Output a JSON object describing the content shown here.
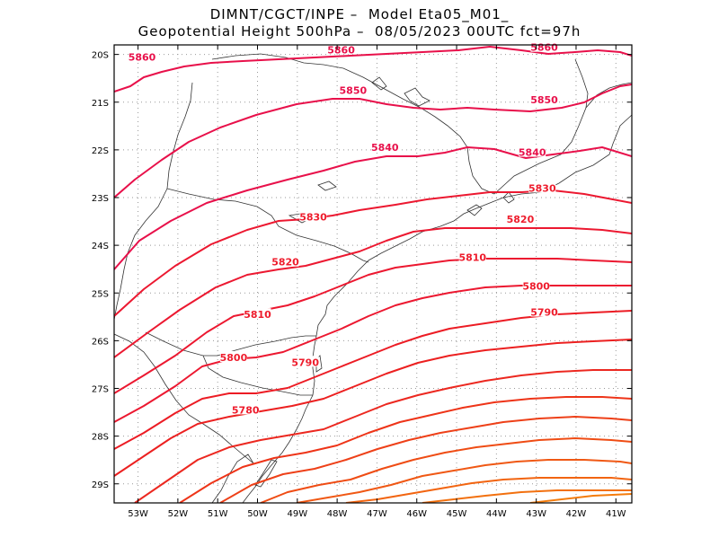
{
  "header": {
    "line1": "DIMNT/CGCT/INPE –  Model Eta05_M01_",
    "line2": "Geopotential Height 500hPa –  08/05/2023 00UTC fct=97h"
  },
  "map": {
    "lon_range": [
      -53.6,
      -40.6
    ],
    "lat_range": [
      -29.4,
      -19.8
    ],
    "lon_ticks": [
      "53W",
      "52W",
      "51W",
      "50W",
      "49W",
      "48W",
      "47W",
      "46W",
      "45W",
      "44W",
      "43W",
      "42W",
      "41W"
    ],
    "lat_ticks": [
      "20S",
      "21S",
      "22S",
      "23S",
      "24S",
      "25S",
      "26S",
      "27S",
      "28S",
      "29S"
    ],
    "contour_labels": [
      {
        "text": "5860",
        "lon": -52.9,
        "lat": -20.05,
        "color": "#e8104a"
      },
      {
        "text": "5860",
        "lon": -47.9,
        "lat": -19.9,
        "color": "#e8104a"
      },
      {
        "text": "5860",
        "lon": -42.8,
        "lat": -19.85,
        "color": "#e8104a"
      },
      {
        "text": "5850",
        "lon": -47.6,
        "lat": -20.75,
        "color": "#e8104a"
      },
      {
        "text": "5850",
        "lon": -42.8,
        "lat": -20.95,
        "color": "#e8104a"
      },
      {
        "text": "5840",
        "lon": -46.8,
        "lat": -21.95,
        "color": "#e8104a"
      },
      {
        "text": "5840",
        "lon": -43.1,
        "lat": -22.05,
        "color": "#e8104a"
      },
      {
        "text": "5830",
        "lon": -42.85,
        "lat": -22.8,
        "color": "#ee1c2c"
      },
      {
        "text": "5830",
        "lon": -48.6,
        "lat": -23.4,
        "color": "#ee1c2c"
      },
      {
        "text": "5820",
        "lon": -43.4,
        "lat": -23.45,
        "color": "#ee1c2c"
      },
      {
        "text": "5820",
        "lon": -49.3,
        "lat": -24.35,
        "color": "#ee1c2c"
      },
      {
        "text": "5810",
        "lon": -44.6,
        "lat": -24.25,
        "color": "#ee1c2c"
      },
      {
        "text": "5810",
        "lon": -50.0,
        "lat": -25.45,
        "color": "#ee1c2c"
      },
      {
        "text": "5800",
        "lon": -43.0,
        "lat": -24.85,
        "color": "#ee1c2c"
      },
      {
        "text": "5800",
        "lon": -50.6,
        "lat": -26.35,
        "color": "#ee1c2c"
      },
      {
        "text": "5790",
        "lon": -42.8,
        "lat": -25.4,
        "color": "#ee1c2c"
      },
      {
        "text": "5790",
        "lon": -48.8,
        "lat": -26.45,
        "color": "#ee1c2c"
      },
      {
        "text": "5780",
        "lon": -50.3,
        "lat": -27.45,
        "color": "#ee1c2c"
      }
    ]
  }
}
